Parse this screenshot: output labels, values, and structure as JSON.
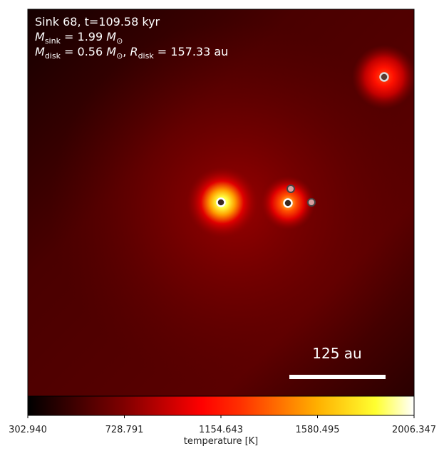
{
  "chart_data": {
    "type": "image",
    "annotations": [
      [
        "Sink 68, t=109.58 kyr"
      ],
      [
        "M",
        "sink",
        " = 1.99 ",
        "M",
        "⊙"
      ],
      [
        "M",
        "disk",
        " = 0.56 ",
        "M",
        "⊙",
        ", ",
        "R",
        "disk",
        " = 157.33 au"
      ]
    ],
    "scale_bar_label": "125 au",
    "colorbar": {
      "label": "temperature [K]",
      "colormap": "afmhot",
      "clim": [
        302.94,
        2006.347
      ],
      "ticks": [
        {
          "value": 302.94,
          "label": "302.940"
        },
        {
          "value": 728.791,
          "label": "728.791"
        },
        {
          "value": 1154.643,
          "label": "1154.643"
        },
        {
          "value": 1580.495,
          "label": "1580.495"
        },
        {
          "value": 2006.347,
          "label": "2006.347"
        }
      ]
    }
  }
}
